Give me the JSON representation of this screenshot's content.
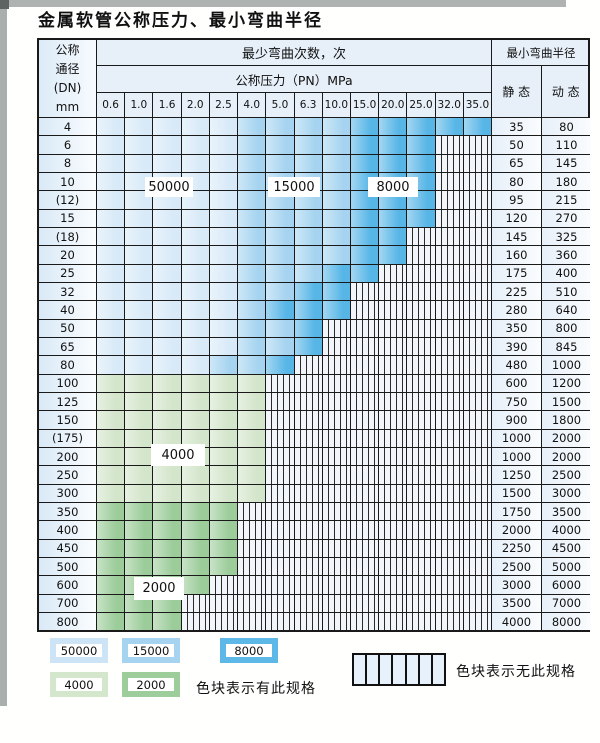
{
  "title": "金属软管公称压力、最小弯曲半径",
  "table": {
    "header": {
      "dn_lines": [
        "公称",
        "通径",
        "(DN)",
        "mm"
      ],
      "cycles": "最少弯曲次数，次",
      "pressure": "公称压力（PN）MPa",
      "pressure_ticks": [
        "0.6",
        "1.0",
        "1.6",
        "2.0",
        "2.5",
        "4.0",
        "5.0",
        "6.3",
        "10.0",
        "15.0",
        "20.0",
        "25.0",
        "32.0",
        "35.0"
      ],
      "radius": "最小弯曲半径",
      "static": "静 态",
      "dynamic": "动 态"
    },
    "rows": [
      {
        "dn": "4",
        "colored": 14,
        "bands": [
          5,
          4,
          5
        ],
        "palette": "blue",
        "static": "35",
        "dynamic": "80"
      },
      {
        "dn": "6",
        "colored": 12,
        "bands": [
          5,
          4,
          3
        ],
        "palette": "blue",
        "static": "50",
        "dynamic": "110"
      },
      {
        "dn": "8",
        "colored": 12,
        "bands": [
          5,
          4,
          3
        ],
        "palette": "blue",
        "static": "65",
        "dynamic": "145"
      },
      {
        "dn": "10",
        "colored": 12,
        "bands": [
          5,
          4,
          3
        ],
        "palette": "blue",
        "static": "80",
        "dynamic": "180"
      },
      {
        "dn": "(12)",
        "colored": 12,
        "bands": [
          5,
          4,
          3
        ],
        "palette": "blue",
        "static": "95",
        "dynamic": "215"
      },
      {
        "dn": "15",
        "colored": 12,
        "bands": [
          5,
          4,
          3
        ],
        "palette": "blue",
        "static": "120",
        "dynamic": "270"
      },
      {
        "dn": "(18)",
        "colored": 11,
        "bands": [
          5,
          4,
          2
        ],
        "palette": "blue",
        "static": "145",
        "dynamic": "325"
      },
      {
        "dn": "20",
        "colored": 11,
        "bands": [
          5,
          4,
          2
        ],
        "palette": "blue",
        "static": "160",
        "dynamic": "360"
      },
      {
        "dn": "25",
        "colored": 10,
        "bands": [
          5,
          3,
          2
        ],
        "palette": "blue",
        "static": "175",
        "dynamic": "400"
      },
      {
        "dn": "32",
        "colored": 9,
        "bands": [
          5,
          2,
          2
        ],
        "palette": "blue",
        "static": "225",
        "dynamic": "510"
      },
      {
        "dn": "40",
        "colored": 9,
        "bands": [
          5,
          1,
          3
        ],
        "palette": "blue",
        "static": "280",
        "dynamic": "640"
      },
      {
        "dn": "50",
        "colored": 8,
        "bands": [
          5,
          2,
          1
        ],
        "palette": "blue",
        "static": "350",
        "dynamic": "800"
      },
      {
        "dn": "65",
        "colored": 8,
        "bands": [
          5,
          2,
          1
        ],
        "palette": "blue",
        "static": "390",
        "dynamic": "845"
      },
      {
        "dn": "80",
        "colored": 7,
        "bands": [
          4,
          2,
          1
        ],
        "palette": "blue",
        "static": "480",
        "dynamic": "1000"
      },
      {
        "dn": "100",
        "colored": 6,
        "bands": [
          6,
          0,
          0
        ],
        "palette": "green_light",
        "static": "600",
        "dynamic": "1200"
      },
      {
        "dn": "125",
        "colored": 6,
        "bands": [
          6,
          0,
          0
        ],
        "palette": "green_light",
        "static": "750",
        "dynamic": "1500"
      },
      {
        "dn": "150",
        "colored": 6,
        "bands": [
          6,
          0,
          0
        ],
        "palette": "green_light",
        "static": "900",
        "dynamic": "1800"
      },
      {
        "dn": "(175)",
        "colored": 6,
        "bands": [
          6,
          0,
          0
        ],
        "palette": "green_light",
        "static": "1000",
        "dynamic": "2000"
      },
      {
        "dn": "200",
        "colored": 6,
        "bands": [
          6,
          0,
          0
        ],
        "palette": "green_light",
        "static": "1000",
        "dynamic": "2000"
      },
      {
        "dn": "250",
        "colored": 6,
        "bands": [
          6,
          0,
          0
        ],
        "palette": "green_light",
        "static": "1250",
        "dynamic": "2500"
      },
      {
        "dn": "300",
        "colored": 6,
        "bands": [
          6,
          0,
          0
        ],
        "palette": "green_light",
        "static": "1500",
        "dynamic": "3000"
      },
      {
        "dn": "350",
        "colored": 5,
        "bands": [
          5,
          0,
          0
        ],
        "palette": "green_dark",
        "static": "1750",
        "dynamic": "3500"
      },
      {
        "dn": "400",
        "colored": 5,
        "bands": [
          5,
          0,
          0
        ],
        "palette": "green_dark",
        "static": "2000",
        "dynamic": "4000"
      },
      {
        "dn": "450",
        "colored": 5,
        "bands": [
          5,
          0,
          0
        ],
        "palette": "green_dark",
        "static": "2250",
        "dynamic": "4500"
      },
      {
        "dn": "500",
        "colored": 5,
        "bands": [
          5,
          0,
          0
        ],
        "palette": "green_dark",
        "static": "2500",
        "dynamic": "5000"
      },
      {
        "dn": "600",
        "colored": 4,
        "bands": [
          4,
          0,
          0
        ],
        "palette": "green_dark",
        "static": "3000",
        "dynamic": "6000"
      },
      {
        "dn": "700",
        "colored": 3,
        "bands": [
          3,
          0,
          0
        ],
        "palette": "green_dark",
        "static": "3500",
        "dynamic": "7000"
      },
      {
        "dn": "800",
        "colored": 3,
        "bands": [
          3,
          0,
          0
        ],
        "palette": "green_dark",
        "static": "4000",
        "dynamic": "8000"
      }
    ]
  },
  "overlay_labels": [
    "50000",
    "15000",
    "8000",
    "4000",
    "2000"
  ],
  "legend": {
    "swatches": [
      {
        "label": "50000",
        "color": "#cde4f6"
      },
      {
        "label": "15000",
        "color": "#a5d3f0"
      },
      {
        "label": "8000",
        "color": "#5db8e8"
      },
      {
        "label": "4000",
        "color": "#d4e6cb"
      },
      {
        "label": "2000",
        "color": "#9dcd9b"
      }
    ],
    "has_spec_text": "色块表示有此规格",
    "no_spec_text": "色块表示无此规格"
  },
  "colors": {
    "light_blue": "#d8eaf8",
    "mid_blue": "#a6d4f0",
    "dark_blue": "#58b6e7",
    "light_green": "#d3e5ca",
    "dark_green": "#9bcc99",
    "hatch_bg": "#f2f6fb",
    "hatch_line": "#2a2a2a",
    "header_bg": "#e7f0f9",
    "border": "#1a1a1a"
  }
}
